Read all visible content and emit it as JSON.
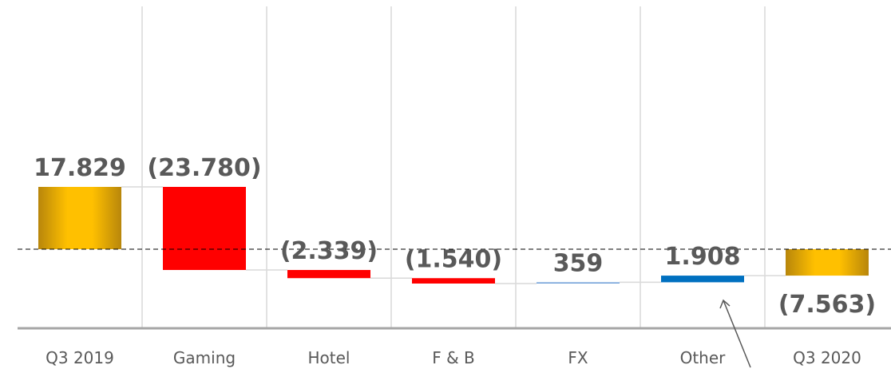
{
  "chart_data": {
    "type": "waterfall",
    "categories": [
      "Q3 2019",
      "Gaming",
      "Hotel",
      "F & B",
      "FX",
      "Other",
      "Q3 2020"
    ],
    "values": [
      17829,
      -23780,
      -2339,
      -1540,
      359,
      1908,
      -7563
    ],
    "value_labels": [
      "17.829",
      "(23.780)",
      "(2.339)",
      "(1.540)",
      "359",
      "1.908",
      "(7.563)"
    ],
    "is_total": [
      true,
      false,
      false,
      false,
      false,
      false,
      true
    ],
    "colors": [
      "gold",
      "#ff0000",
      "#ff0000",
      "#ff0000",
      "#6f9fd8",
      "#0070c0",
      "gold"
    ]
  }
}
